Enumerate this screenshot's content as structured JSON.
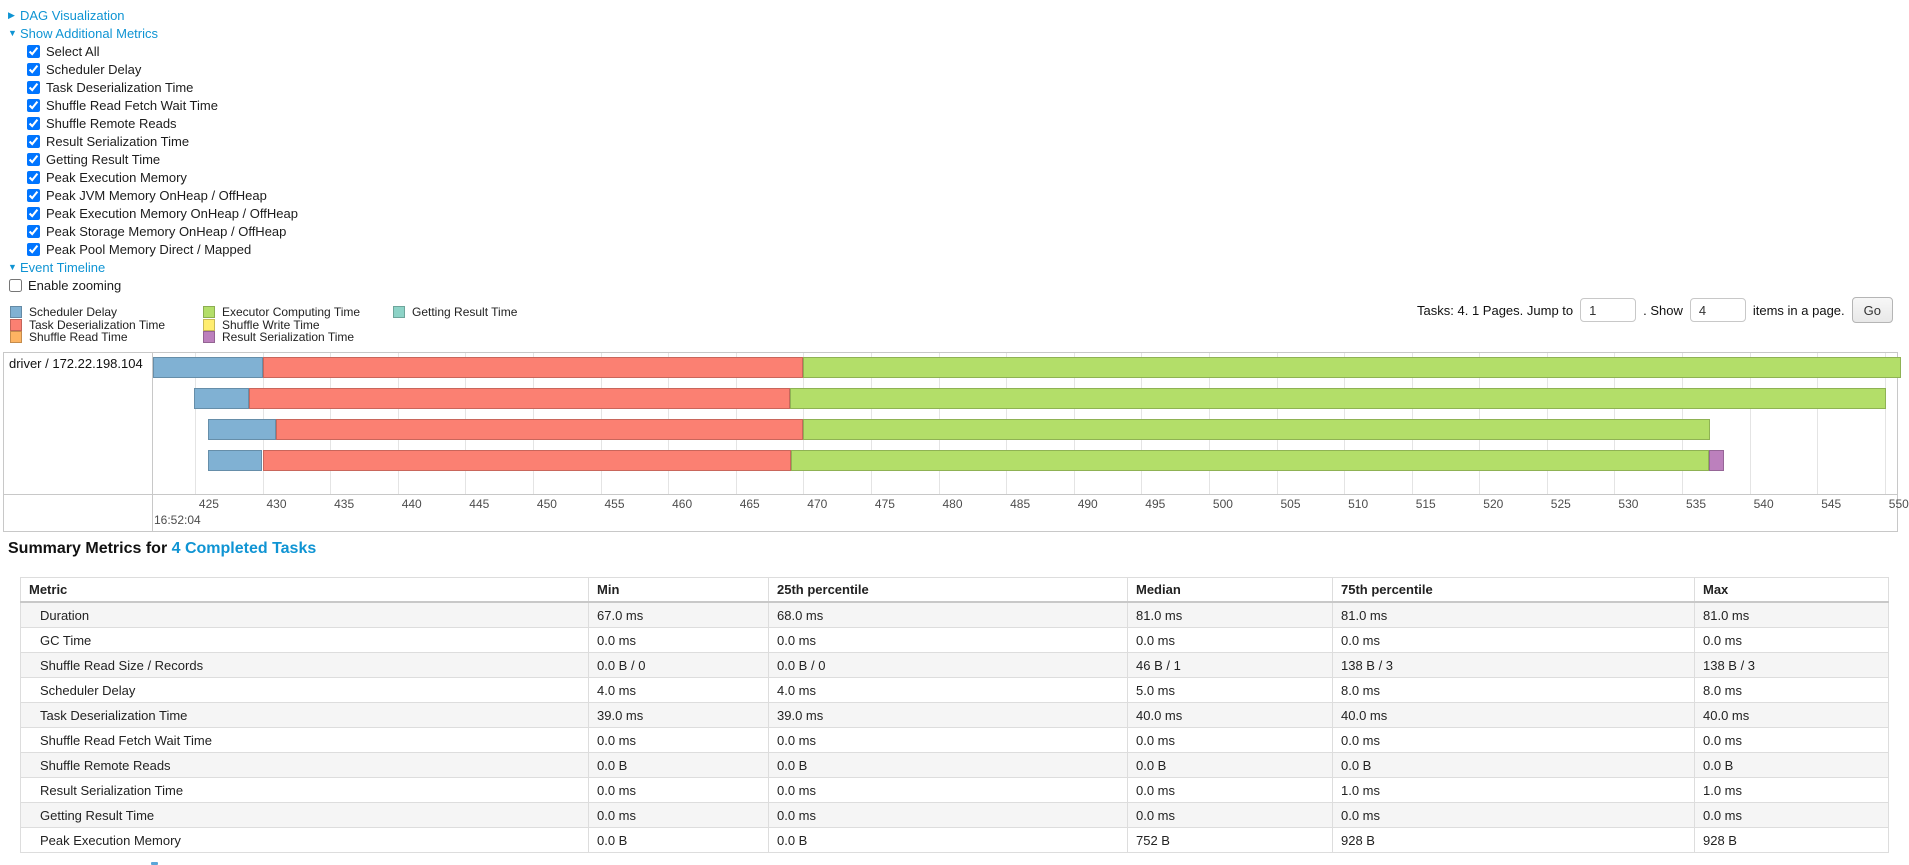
{
  "sections": {
    "dag": {
      "label": "DAG Visualization",
      "arrow": "▶"
    },
    "additional_metrics": {
      "label": "Show Additional Metrics",
      "arrow": "▼"
    },
    "event_timeline": {
      "label": "Event Timeline",
      "arrow": "▼"
    }
  },
  "metric_checkboxes": [
    {
      "label": "Select All",
      "checked": true
    },
    {
      "label": "Scheduler Delay",
      "checked": true
    },
    {
      "label": "Task Deserialization Time",
      "checked": true
    },
    {
      "label": "Shuffle Read Fetch Wait Time",
      "checked": true
    },
    {
      "label": "Shuffle Remote Reads",
      "checked": true
    },
    {
      "label": "Result Serialization Time",
      "checked": true
    },
    {
      "label": "Getting Result Time",
      "checked": true
    },
    {
      "label": "Peak Execution Memory",
      "checked": true
    },
    {
      "label": "Peak JVM Memory OnHeap / OffHeap",
      "checked": true
    },
    {
      "label": "Peak Execution Memory OnHeap / OffHeap",
      "checked": true
    },
    {
      "label": "Peak Storage Memory OnHeap / OffHeap",
      "checked": true
    },
    {
      "label": "Peak Pool Memory Direct / Mapped",
      "checked": true
    }
  ],
  "enable_zooming": {
    "label": "Enable zooming",
    "checked": false
  },
  "legend_columns": [
    [
      {
        "label": "Scheduler Delay",
        "color": "#80B1D3"
      },
      {
        "label": "Task Deserialization Time",
        "color": "#FB8072"
      },
      {
        "label": "Shuffle Read Time",
        "color": "#FDB462"
      }
    ],
    [
      {
        "label": "Executor Computing Time",
        "color": "#B3DE69"
      },
      {
        "label": "Shuffle Write Time",
        "color": "#FFED6F"
      },
      {
        "label": "Result Serialization Time",
        "color": "#BC80BD"
      }
    ],
    [
      {
        "label": "Getting Result Time",
        "color": "#8DD3C7"
      }
    ]
  ],
  "pagination": {
    "prefix": "Tasks: 4. 1 Pages. Jump to",
    "jump_value": "1",
    "mid": ". Show",
    "show_value": "4",
    "suffix": "items in a page.",
    "go_label": "Go"
  },
  "chart_data": {
    "type": "timeline",
    "group_label": "driver / 172.22.198.104",
    "axis": {
      "domain_start": 421.9,
      "domain_end": 550.9,
      "tick_start": 425,
      "tick_end": 550,
      "tick_step": 5,
      "major_label": "16:52:04"
    },
    "segment_colors": {
      "Scheduler Delay": "#80B1D3",
      "Task Deserialization Time": "#FB8072",
      "Shuffle Read Time": "#FDB462",
      "Executor Computing Time": "#B3DE69",
      "Shuffle Write Time": "#FFED6F",
      "Result Serialization Time": "#BC80BD",
      "Getting Result Time": "#8DD3C7"
    },
    "tasks": [
      {
        "segments": [
          {
            "name": "Scheduler Delay",
            "start": 421.9,
            "end": 430.0
          },
          {
            "name": "Task Deserialization Time",
            "start": 430.0,
            "end": 470.0
          },
          {
            "name": "Executor Computing Time",
            "start": 470.0,
            "end": 551.2
          }
        ]
      },
      {
        "segments": [
          {
            "name": "Scheduler Delay",
            "start": 424.9,
            "end": 429.0
          },
          {
            "name": "Task Deserialization Time",
            "start": 429.0,
            "end": 469.0
          },
          {
            "name": "Executor Computing Time",
            "start": 469.0,
            "end": 550.1
          }
        ]
      },
      {
        "segments": [
          {
            "name": "Scheduler Delay",
            "start": 426.0,
            "end": 431.0
          },
          {
            "name": "Task Deserialization Time",
            "start": 431.0,
            "end": 470.0
          },
          {
            "name": "Executor Computing Time",
            "start": 470.0,
            "end": 537.1
          }
        ]
      },
      {
        "segments": [
          {
            "name": "Scheduler Delay",
            "start": 426.0,
            "end": 430.0
          },
          {
            "name": "Task Deserialization Time",
            "start": 430.0,
            "end": 469.1
          },
          {
            "name": "Executor Computing Time",
            "start": 469.1,
            "end": 537.0
          },
          {
            "name": "Result Serialization Time",
            "start": 537.0,
            "end": 538.1
          }
        ]
      }
    ]
  },
  "summary": {
    "heading_prefix": "Summary Metrics for ",
    "heading_link": "4 Completed Tasks",
    "headers": [
      "Metric",
      "Min",
      "25th percentile",
      "Median",
      "75th percentile",
      "Max"
    ],
    "rows": [
      [
        "Duration",
        "67.0 ms",
        "68.0 ms",
        "81.0 ms",
        "81.0 ms",
        "81.0 ms"
      ],
      [
        "GC Time",
        "0.0 ms",
        "0.0 ms",
        "0.0 ms",
        "0.0 ms",
        "0.0 ms"
      ],
      [
        "Shuffle Read Size / Records",
        "0.0 B / 0",
        "0.0 B / 0",
        "46 B / 1",
        "138 B / 3",
        "138 B / 3"
      ],
      [
        "Scheduler Delay",
        "4.0 ms",
        "4.0 ms",
        "5.0 ms",
        "8.0 ms",
        "8.0 ms"
      ],
      [
        "Task Deserialization Time",
        "39.0 ms",
        "39.0 ms",
        "40.0 ms",
        "40.0 ms",
        "40.0 ms"
      ],
      [
        "Shuffle Read Fetch Wait Time",
        "0.0 ms",
        "0.0 ms",
        "0.0 ms",
        "0.0 ms",
        "0.0 ms"
      ],
      [
        "Shuffle Remote Reads",
        "0.0 B",
        "0.0 B",
        "0.0 B",
        "0.0 B",
        "0.0 B"
      ],
      [
        "Result Serialization Time",
        "0.0 ms",
        "0.0 ms",
        "0.0 ms",
        "1.0 ms",
        "1.0 ms"
      ],
      [
        "Getting Result Time",
        "0.0 ms",
        "0.0 ms",
        "0.0 ms",
        "0.0 ms",
        "0.0 ms"
      ],
      [
        "Peak Execution Memory",
        "0.0 B",
        "0.0 B",
        "752 B",
        "928 B",
        "928 B"
      ]
    ]
  }
}
